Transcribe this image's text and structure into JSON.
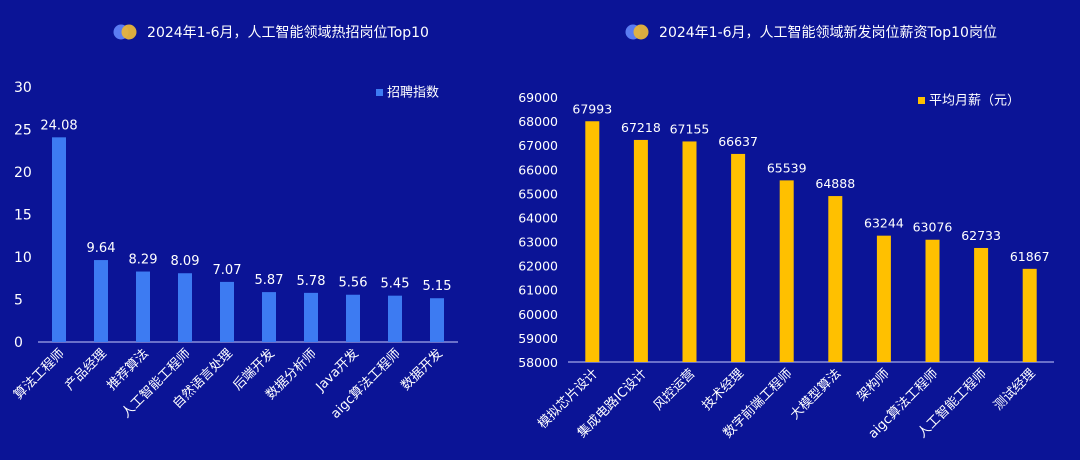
{
  "colors": {
    "background": "#0b1496",
    "left_bar": "#3d7bf2",
    "right_bar": "#ffc000",
    "icon_a": "#5b7cf2",
    "icon_b": "#e8b43a"
  },
  "chart_data": [
    {
      "type": "bar",
      "title": "2024年1-6月，人工智能领域热招岗位Top10",
      "legend": "top-right",
      "ylim": [
        0,
        30
      ],
      "yticks": [
        0,
        5,
        10,
        15,
        20,
        25,
        30
      ],
      "categories": [
        "算法工程师",
        "产品经理",
        "推荐算法",
        "人工智能工程师",
        "自然语言处理",
        "后端开发",
        "数据分析师",
        "Java开发",
        "aigc算法工程师",
        "数据开发"
      ],
      "series": [
        {
          "name": "招聘指数",
          "values": [
            24.08,
            9.64,
            8.29,
            8.09,
            7.07,
            5.87,
            5.78,
            5.56,
            5.45,
            5.15
          ]
        }
      ],
      "data_labels": [
        "24.08",
        "9.64",
        "8.29",
        "8.09",
        "7.07",
        "5.87",
        "5.78",
        "5.56",
        "5.45",
        "5.15"
      ]
    },
    {
      "type": "bar",
      "title": "2024年1-6月，人工智能领域新发岗位薪资Top10岗位",
      "legend": "top-right",
      "ylim": [
        58000,
        69000
      ],
      "yticks": [
        58000,
        59000,
        60000,
        61000,
        62000,
        63000,
        64000,
        65000,
        66000,
        67000,
        68000,
        69000
      ],
      "categories": [
        "模拟芯片设计",
        "集成电路IC设计",
        "风控运营",
        "技术经理",
        "数字前端工程师",
        "大模型算法",
        "架构师",
        "aigc算法工程师",
        "人工智能工程师",
        "测试经理"
      ],
      "series": [
        {
          "name": "平均月薪（元）",
          "values": [
            67993,
            67218,
            67155,
            66637,
            65539,
            64888,
            63244,
            63076,
            62733,
            61867
          ]
        }
      ],
      "data_labels": [
        "67993",
        "67218",
        "67155",
        "66637",
        "65539",
        "64888",
        "63244",
        "63076",
        "62733",
        "61867"
      ]
    }
  ]
}
